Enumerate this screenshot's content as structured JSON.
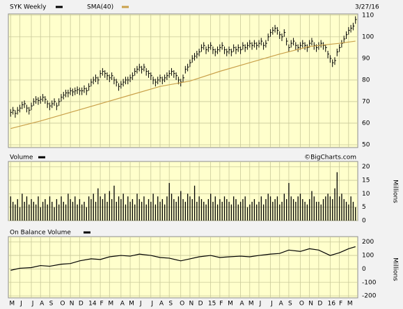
{
  "chart_data": [
    {
      "type": "ohlc",
      "date": "3/27/16",
      "ylim": [
        48.7,
        110.6
      ],
      "yticks": [
        50,
        60,
        70,
        80,
        90,
        100,
        110
      ],
      "grid": true,
      "series": [
        {
          "name": "SYK Weekly",
          "color": "#000000",
          "high": [
            66.5,
            67.5,
            66,
            67.5,
            68.5,
            70,
            70.5,
            68.5,
            67.5,
            69.5,
            71.5,
            72.5,
            72,
            72.5,
            73.5,
            72.5,
            70.5,
            69.5,
            70.5,
            71.5,
            69.5,
            71.5,
            73.5,
            74.5,
            75.5,
            75.5,
            76.5,
            76,
            76.5,
            77,
            76.5,
            76.5,
            77.5,
            76.5,
            78.5,
            80.5,
            81.5,
            82.5,
            81.5,
            84.5,
            85.5,
            84.5,
            83.5,
            82.5,
            83.5,
            81.5,
            80.5,
            78.5,
            79.5,
            80.5,
            81.5,
            81.5,
            82.5,
            83.5,
            85.5,
            86.5,
            87.5,
            86.5,
            87.5,
            85.5,
            84.5,
            83.5,
            81.5,
            80.5,
            81.5,
            82.5,
            81.5,
            82.5,
            83.5,
            84.5,
            85.5,
            84.5,
            83.5,
            81.5,
            80.5,
            82.5,
            86.5,
            87.5,
            89.5,
            91.5,
            92.5,
            93.5,
            94.5,
            96.5,
            97.5,
            95.5,
            96.5,
            97.5,
            95.5,
            94.5,
            95.5,
            96.5,
            97.5,
            95.5,
            94.5,
            95.5,
            94.5,
            96.5,
            95.5,
            96.5,
            95.5,
            97.5,
            96.5,
            97.5,
            98.5,
            97.5,
            98.5,
            97.5,
            98.5,
            99.5,
            97.5,
            98.5,
            101.5,
            103.5,
            104.5,
            105.5,
            104.5,
            102.5,
            101.5,
            103.5,
            99.5,
            96.5,
            98.5,
            99.5,
            97.5,
            96.5,
            97.5,
            98.5,
            97.5,
            96.5,
            98.5,
            99.5,
            97.5,
            96.5,
            97.5,
            98.5,
            97.5,
            96.5,
            93.5,
            91.5,
            89.5,
            90.5,
            94.5,
            96.5,
            98.5,
            100.5,
            102.5,
            104.5,
            105.5,
            106.5,
            109.5
          ],
          "low": [
            63,
            64,
            62.5,
            64,
            65,
            66.5,
            67,
            65,
            64,
            66,
            68,
            69,
            68.5,
            69,
            70,
            69,
            67,
            66,
            67,
            68,
            66,
            68,
            70,
            71,
            72,
            72,
            73,
            72.5,
            73,
            73.5,
            73,
            73,
            74,
            73,
            75,
            77,
            78,
            79,
            78,
            81,
            82,
            81,
            80,
            79,
            80,
            78,
            77,
            75,
            76,
            77,
            78,
            78,
            79,
            80,
            82,
            83,
            84,
            83,
            84,
            82,
            81,
            80,
            78,
            77,
            78,
            79,
            78,
            79,
            80,
            81,
            82,
            81,
            80,
            78,
            77,
            79,
            83,
            84,
            86,
            88,
            89,
            90,
            91,
            93,
            94,
            92,
            93,
            94,
            92,
            91,
            92,
            93,
            94,
            92,
            91,
            92,
            91,
            93,
            92,
            93,
            92,
            94,
            93,
            94,
            95,
            94,
            95,
            94,
            95,
            96,
            94,
            95,
            98,
            100,
            101,
            102,
            101,
            99,
            98,
            100,
            96,
            93,
            95,
            96,
            94,
            93,
            94,
            95,
            94,
            93,
            95,
            96,
            94,
            93,
            94,
            95,
            94,
            93,
            90,
            88,
            86,
            87,
            91,
            93,
            95,
            97,
            99,
            101,
            102,
            103,
            106
          ],
          "close": [
            65,
            66,
            64.5,
            66,
            67,
            68.5,
            69,
            67,
            66,
            68,
            70,
            71,
            70.5,
            71,
            72,
            71,
            69,
            68,
            69,
            70,
            68,
            70,
            72,
            73,
            74,
            74,
            75,
            74.5,
            75,
            75.5,
            75,
            75,
            76,
            75,
            77,
            79,
            80,
            81,
            80,
            83,
            84,
            83,
            82,
            81,
            82,
            80,
            79,
            77,
            78,
            79,
            80,
            80,
            81,
            82,
            84,
            85,
            86,
            85,
            86,
            84,
            83,
            82,
            80,
            79,
            80,
            81,
            80,
            81,
            82,
            83,
            84,
            83,
            82,
            80,
            79,
            81,
            85,
            86,
            88,
            90,
            91,
            92,
            93,
            95,
            96,
            94,
            95,
            96,
            94,
            93,
            94,
            95,
            96,
            94,
            93,
            94,
            93,
            95,
            94,
            95,
            94,
            96,
            95,
            96,
            97,
            96,
            97,
            96,
            97,
            98,
            96,
            97,
            100,
            102,
            103,
            104,
            103,
            101,
            100,
            102,
            98,
            95,
            97,
            98,
            96,
            95,
            96,
            97,
            96,
            95,
            97,
            98,
            96,
            95,
            96,
            97,
            96,
            95,
            92,
            90,
            88,
            89,
            93,
            95,
            97,
            99,
            101,
            103,
            104,
            105,
            108
          ]
        },
        {
          "name": "SMA(40)",
          "color": "#c9a04a",
          "x": [
            0,
            13,
            26,
            39,
            52,
            65,
            78,
            91,
            104,
            117,
            130,
            143,
            150
          ],
          "values": [
            57.5,
            61,
            65,
            69,
            73,
            77,
            79.5,
            84,
            88,
            92,
            95.5,
            97,
            98
          ]
        }
      ]
    },
    {
      "type": "bar",
      "title": "Volume",
      "watermark": "©BigCharts.com",
      "axis_label": "Millions",
      "color": "#000000",
      "ylim": [
        0,
        22
      ],
      "yticks": [
        0,
        5,
        10,
        15,
        20
      ],
      "grid": true,
      "values": [
        9,
        7,
        6,
        8,
        5,
        10,
        7,
        9,
        6,
        8,
        7,
        6,
        9,
        5,
        7,
        8,
        6,
        9,
        7,
        5,
        8,
        6,
        9,
        7,
        6,
        10,
        8,
        7,
        9,
        6,
        8,
        6,
        7,
        5,
        9,
        8,
        10,
        7,
        12,
        9,
        8,
        10,
        7,
        11,
        8,
        13,
        7,
        9,
        8,
        10,
        6,
        9,
        7,
        8,
        6,
        10,
        8,
        7,
        9,
        6,
        8,
        7,
        10,
        6,
        9,
        7,
        8,
        6,
        9,
        14,
        10,
        8,
        7,
        9,
        11,
        8,
        7,
        10,
        9,
        8,
        13,
        7,
        9,
        8,
        7,
        6,
        8,
        10,
        7,
        9,
        6,
        8,
        7,
        9,
        8,
        7,
        6,
        9,
        8,
        6,
        7,
        8,
        9,
        5,
        6,
        7,
        8,
        6,
        7,
        9,
        6,
        8,
        10,
        9,
        7,
        8,
        9,
        6,
        7,
        10,
        8,
        14,
        9,
        8,
        7,
        9,
        10,
        8,
        7,
        6,
        8,
        11,
        9,
        7,
        7,
        6,
        8,
        9,
        10,
        9,
        8,
        12,
        18,
        9,
        10,
        8,
        7,
        6,
        9,
        7,
        5
      ]
    },
    {
      "type": "line",
      "title": "On Balance Volume",
      "axis_label": "Millions",
      "ylim": [
        -215,
        240
      ],
      "yticks": [
        -200,
        -100,
        0,
        100,
        200
      ],
      "grid": true,
      "xlim": [
        -1,
        151
      ],
      "xticks": [
        {
          "value": 0,
          "label": "M"
        },
        {
          "value": 4,
          "label": "J"
        },
        {
          "value": 9,
          "label": "J"
        },
        {
          "value": 13,
          "label": "A"
        },
        {
          "value": 17,
          "label": "S"
        },
        {
          "value": 22,
          "label": "O"
        },
        {
          "value": 26,
          "label": "N"
        },
        {
          "value": 30,
          "label": "D"
        },
        {
          "value": 35,
          "label": "14"
        },
        {
          "value": 39,
          "label": "F"
        },
        {
          "value": 43,
          "label": "M"
        },
        {
          "value": 48,
          "label": "A"
        },
        {
          "value": 52,
          "label": "M"
        },
        {
          "value": 56,
          "label": "J"
        },
        {
          "value": 61,
          "label": "J"
        },
        {
          "value": 65,
          "label": "A"
        },
        {
          "value": 69,
          "label": "S"
        },
        {
          "value": 74,
          "label": "O"
        },
        {
          "value": 78,
          "label": "N"
        },
        {
          "value": 82,
          "label": "D"
        },
        {
          "value": 87,
          "label": "15"
        },
        {
          "value": 91,
          "label": "F"
        },
        {
          "value": 95,
          "label": "M"
        },
        {
          "value": 100,
          "label": "A"
        },
        {
          "value": 104,
          "label": "M"
        },
        {
          "value": 108,
          "label": "J"
        },
        {
          "value": 113,
          "label": "J"
        },
        {
          "value": 117,
          "label": "A"
        },
        {
          "value": 121,
          "label": "S"
        },
        {
          "value": 126,
          "label": "O"
        },
        {
          "value": 130,
          "label": "N"
        },
        {
          "value": 134,
          "label": "D"
        },
        {
          "value": 139,
          "label": "16"
        },
        {
          "value": 143,
          "label": "F"
        },
        {
          "value": 147,
          "label": "M"
        }
      ],
      "series": [
        {
          "color": "#000000",
          "x": [
            0,
            4,
            9,
            13,
            17,
            22,
            26,
            30,
            35,
            39,
            43,
            48,
            52,
            56,
            61,
            65,
            69,
            74,
            78,
            82,
            87,
            91,
            95,
            100,
            104,
            108,
            113,
            117,
            121,
            126,
            130,
            134,
            139,
            143,
            147,
            150
          ],
          "values": [
            -10,
            5,
            10,
            25,
            20,
            35,
            40,
            60,
            75,
            70,
            90,
            100,
            95,
            110,
            100,
            85,
            80,
            60,
            75,
            90,
            100,
            85,
            90,
            95,
            90,
            100,
            110,
            115,
            140,
            130,
            150,
            140,
            100,
            120,
            150,
            165
          ]
        }
      ]
    }
  ]
}
